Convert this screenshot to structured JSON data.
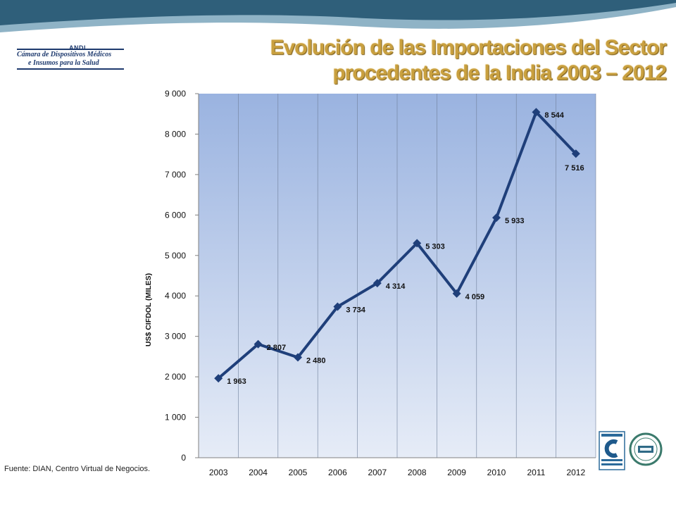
{
  "title": "Evolución de las Importaciones del Sector procedentes de la India 2003 – 2012",
  "logo": {
    "brand": "ANDI",
    "line1": "Cámara de Dispositivos Médicos",
    "line2": "e Insumos para la Salud"
  },
  "source_note": "Fuente: DIAN, Centro Virtual de Negocios.",
  "colors": {
    "title": "#c9a03f",
    "series": "#1f3f7a",
    "header_dark": "#2f5f7a",
    "header_light": "#8fb3c6"
  },
  "badges": [
    "icontec-certification-icon",
    "iqnet-certification-icon"
  ],
  "chart_data": {
    "type": "line",
    "title": "",
    "xlabel": "",
    "ylabel": "US$ CIFDOL (MILES)",
    "ylim": [
      0,
      9000
    ],
    "y_ticks": [
      "0",
      "1 000",
      "2 000",
      "3 000",
      "4 000",
      "5 000",
      "6 000",
      "7 000",
      "8 000",
      "9 000"
    ],
    "categories": [
      "2003",
      "2004",
      "2005",
      "2006",
      "2007",
      "2008",
      "2009",
      "2010",
      "2011",
      "2012"
    ],
    "values": [
      1963,
      2807,
      2480,
      3734,
      4314,
      5303,
      4059,
      5933,
      8544,
      7516
    ],
    "data_labels": [
      "1 963",
      "2 807",
      "2 480",
      "3 734",
      "4 314",
      "5 303",
      "4 059",
      "5 933",
      "8 544",
      "7 516"
    ],
    "marker": "diamond",
    "grid": true
  }
}
